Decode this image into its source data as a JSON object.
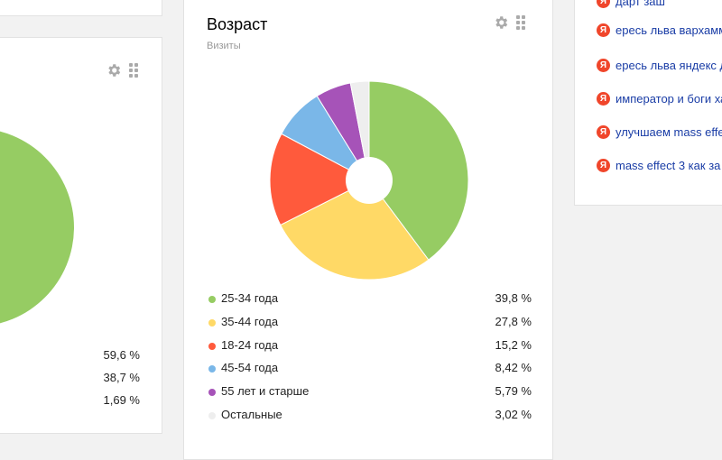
{
  "top_left_card": {},
  "left_widget": {
    "values": [
      "59,6 %",
      "38,7 %",
      "1,69 %"
    ],
    "pie_color": "#96cc63"
  },
  "age_widget": {
    "title": "Возраст",
    "subtitle": "Визиты",
    "legend": [
      {
        "label": "25-34 года",
        "value": "39,8 %",
        "color": "#96cc63"
      },
      {
        "label": "35-44 года",
        "value": "27,8 %",
        "color": "#ffd966"
      },
      {
        "label": "18-24 года",
        "value": "15,2 %",
        "color": "#ff5a3c"
      },
      {
        "label": "45-54 года",
        "value": "8,42 %",
        "color": "#7ab7e8"
      },
      {
        "label": "55 лет и старше",
        "value": "5,79 %",
        "color": "#a653b8"
      },
      {
        "label": "Остальные",
        "value": "3,02 %",
        "color": "#eeeeee"
      }
    ]
  },
  "chart_data": {
    "type": "pie",
    "title": "Возраст",
    "subtitle": "Визиты",
    "categories": [
      "25-34 года",
      "35-44 года",
      "18-24 года",
      "45-54 года",
      "55 лет и старше",
      "Остальные"
    ],
    "values": [
      39.8,
      27.8,
      15.2,
      8.42,
      5.79,
      3.02
    ],
    "colors": [
      "#96cc63",
      "#ffd966",
      "#ff5a3c",
      "#7ab7e8",
      "#a653b8",
      "#eeeeee"
    ],
    "donut": true
  },
  "search_phrases": {
    "icon_letter": "Я",
    "items": [
      "дарт заш",
      "ересь льва вархамм",
      "ересь льва яндекс д",
      "император и боги ха",
      "улучшаем mass effe",
      "mass effect 3 как за"
    ]
  },
  "icons": {
    "settings": "gear-icon",
    "drag": "drag-handle-icon",
    "search_engine": "yandex-icon"
  }
}
